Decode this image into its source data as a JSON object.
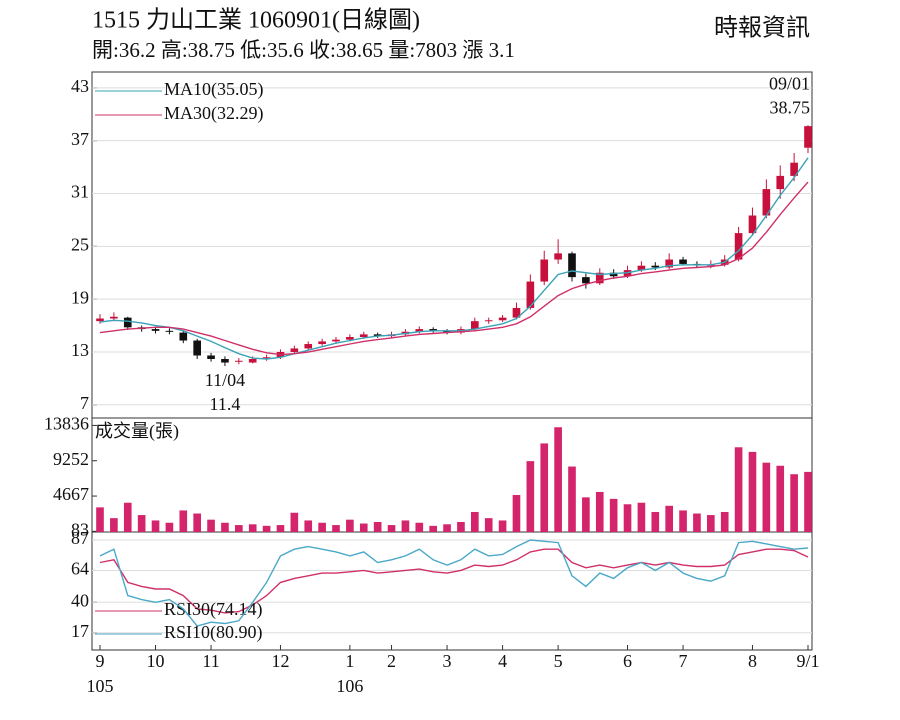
{
  "chart_data": [
    {
      "type": "candlestick",
      "title": "1515  力山工業 1060901(日線圖)",
      "subtitle": "開:36.2 高:38.75 低:35.6 收:38.65 量:7803 漲 3.1",
      "source": "時報資訊",
      "open": [
        16.5,
        16.8,
        16.9,
        15.8,
        15.6,
        15.4,
        15.2,
        14.3,
        12.6,
        12.2,
        12.0,
        11.8,
        12.2,
        12.4,
        13.0,
        13.4,
        13.9,
        14.2,
        14.4,
        14.7,
        15.0,
        14.8,
        15.0,
        15.3,
        15.6,
        15.4,
        15.2,
        15.6,
        16.5,
        16.6,
        16.9,
        18.0,
        21.0,
        23.5,
        24.2,
        21.5,
        20.8,
        22.0,
        21.6,
        22.3,
        22.8,
        22.6,
        23.5,
        23.0,
        22.9,
        22.9,
        23.5,
        26.5,
        28.5,
        31.5,
        33.0,
        36.2
      ],
      "high": [
        17.3,
        17.5,
        17.0,
        16.0,
        15.9,
        15.7,
        15.4,
        14.5,
        12.9,
        12.5,
        12.3,
        12.5,
        12.7,
        13.3,
        13.7,
        14.2,
        14.5,
        14.7,
        15.0,
        15.3,
        15.2,
        15.3,
        15.6,
        15.9,
        15.8,
        15.6,
        15.9,
        16.9,
        16.9,
        17.2,
        18.6,
        21.8,
        24.5,
        25.8,
        24.4,
        21.9,
        22.5,
        22.4,
        22.8,
        23.3,
        23.2,
        24.2,
        23.8,
        23.3,
        23.4,
        24.0,
        27.2,
        29.4,
        32.6,
        34.2,
        35.6,
        38.75
      ],
      "low": [
        16.2,
        16.5,
        15.5,
        15.3,
        15.1,
        15.0,
        14.0,
        12.2,
        11.9,
        11.4,
        11.6,
        11.7,
        12.0,
        12.2,
        12.8,
        13.2,
        13.7,
        14.0,
        14.2,
        14.5,
        14.6,
        14.6,
        14.8,
        15.1,
        15.2,
        15.0,
        15.0,
        15.4,
        16.2,
        16.4,
        16.7,
        17.8,
        20.6,
        23.0,
        21.0,
        20.2,
        20.6,
        21.3,
        21.4,
        22.1,
        22.3,
        22.4,
        22.8,
        22.6,
        22.5,
        22.7,
        23.3,
        26.2,
        28.2,
        30.4,
        32.4,
        35.6
      ],
      "close": [
        16.8,
        17.0,
        15.8,
        15.6,
        15.4,
        15.3,
        14.3,
        12.6,
        12.2,
        11.8,
        12.0,
        12.2,
        12.4,
        13.0,
        13.4,
        13.9,
        14.2,
        14.4,
        14.7,
        15.0,
        14.8,
        15.0,
        15.3,
        15.6,
        15.4,
        15.2,
        15.6,
        16.5,
        16.6,
        16.9,
        18.0,
        21.0,
        23.5,
        24.2,
        21.5,
        20.8,
        22.0,
        21.6,
        22.3,
        22.8,
        22.6,
        23.5,
        23.0,
        22.9,
        22.9,
        23.5,
        26.5,
        28.5,
        31.5,
        33.0,
        34.5,
        38.65
      ],
      "up_color": "#c8103c",
      "down_color": "#111111",
      "series": [
        {
          "name": "MA10(35.05)",
          "color": "#3aa3b8",
          "values": [
            16.4,
            16.6,
            16.5,
            16.3,
            16.0,
            15.8,
            15.4,
            14.8,
            14.2,
            13.5,
            12.8,
            12.3,
            12.2,
            12.4,
            12.8,
            13.2,
            13.6,
            14.0,
            14.3,
            14.6,
            14.8,
            14.9,
            15.1,
            15.3,
            15.4,
            15.4,
            15.4,
            15.6,
            15.9,
            16.2,
            16.8,
            18.2,
            20.0,
            21.8,
            22.2,
            22.0,
            21.8,
            21.9,
            22.0,
            22.3,
            22.5,
            22.8,
            22.9,
            22.9,
            22.9,
            23.2,
            24.5,
            26.3,
            28.5,
            30.8,
            32.8,
            35.05
          ]
        },
        {
          "name": "MA30(32.29)",
          "color": "#d0306a",
          "values": [
            15.2,
            15.4,
            15.6,
            15.7,
            15.8,
            15.8,
            15.6,
            15.2,
            14.8,
            14.3,
            13.8,
            13.3,
            12.9,
            12.7,
            12.8,
            13.0,
            13.3,
            13.6,
            13.9,
            14.2,
            14.4,
            14.6,
            14.8,
            15.0,
            15.1,
            15.2,
            15.3,
            15.4,
            15.6,
            15.8,
            16.2,
            17.0,
            18.2,
            19.4,
            20.2,
            20.7,
            21.1,
            21.4,
            21.6,
            21.9,
            22.1,
            22.3,
            22.5,
            22.6,
            22.7,
            22.9,
            23.6,
            24.8,
            26.6,
            28.6,
            30.5,
            32.29
          ]
        }
      ],
      "high_label": [
        "09/01",
        "38.75"
      ],
      "low_label": [
        "11/04",
        "11.4"
      ],
      "ylim": [
        5.5,
        44.8
      ],
      "yticks": [
        7,
        13,
        19,
        25,
        31,
        37,
        43
      ],
      "grid": true
    },
    {
      "type": "bar",
      "series": [
        {
          "name": "成交量(張)",
          "color": "#d4246c",
          "values": [
            3200,
            1800,
            3800,
            2200,
            1500,
            1200,
            2800,
            2400,
            1600,
            1200,
            900,
            1000,
            800,
            900,
            2500,
            1500,
            1200,
            900,
            1600,
            1100,
            1300,
            900,
            1500,
            1200,
            800,
            1000,
            1300,
            2600,
            1800,
            1500,
            4800,
            9200,
            11500,
            13600,
            8500,
            4500,
            5200,
            4300,
            3600,
            3800,
            2600,
            3400,
            2800,
            2400,
            2200,
            2600,
            11000,
            10400,
            9000,
            8600,
            7500,
            7803
          ]
        }
      ],
      "ylim": [
        0,
        14800
      ],
      "yticks": [
        83,
        4667,
        9252,
        13836
      ],
      "grid": false
    },
    {
      "type": "line",
      "series": [
        {
          "name": "RSI30(74.14)",
          "color": "#d0306a",
          "values": [
            70,
            72,
            55,
            52,
            50,
            50,
            45,
            35,
            34,
            32,
            33,
            38,
            45,
            55,
            58,
            60,
            62,
            62,
            63,
            64,
            62,
            63,
            64,
            65,
            63,
            62,
            64,
            68,
            67,
            68,
            72,
            78,
            80,
            80,
            70,
            66,
            68,
            66,
            68,
            70,
            68,
            70,
            68,
            67,
            67,
            68,
            76,
            78,
            80,
            80,
            79,
            74.14
          ]
        },
        {
          "name": "RSI10(80.90)",
          "color": "#4aa8c8",
          "values": [
            75,
            80,
            45,
            42,
            40,
            42,
            35,
            22,
            25,
            24,
            26,
            40,
            55,
            75,
            80,
            82,
            80,
            78,
            75,
            78,
            70,
            72,
            75,
            80,
            72,
            68,
            72,
            80,
            75,
            76,
            82,
            87,
            86,
            85,
            60,
            52,
            62,
            58,
            66,
            70,
            64,
            70,
            62,
            58,
            56,
            60,
            85,
            86,
            84,
            82,
            80,
            80.9
          ]
        }
      ],
      "categories": [
        "9",
        null,
        null,
        null,
        "10",
        null,
        null,
        null,
        "11",
        null,
        null,
        null,
        null,
        "12",
        null,
        null,
        null,
        null,
        "1",
        null,
        null,
        "2",
        null,
        null,
        null,
        "3",
        null,
        null,
        null,
        "4",
        null,
        null,
        null,
        "5",
        null,
        null,
        null,
        null,
        "6",
        null,
        null,
        null,
        "7",
        null,
        null,
        null,
        null,
        "8",
        null,
        null,
        null,
        "9/1"
      ],
      "sublabels": [
        "105",
        null,
        null,
        null,
        null,
        null,
        null,
        null,
        null,
        null,
        null,
        null,
        null,
        null,
        null,
        null,
        null,
        null,
        "106",
        null,
        null,
        null,
        null,
        null,
        null,
        null,
        null,
        null,
        null,
        null,
        null,
        null,
        null,
        null,
        null,
        null,
        null,
        null,
        null,
        null,
        null,
        null,
        null,
        null,
        null,
        null,
        null,
        null,
        null,
        null,
        null,
        null
      ],
      "ylim": [
        4,
        93
      ],
      "yticks": [
        17,
        40,
        64,
        87
      ],
      "grid": true
    }
  ]
}
